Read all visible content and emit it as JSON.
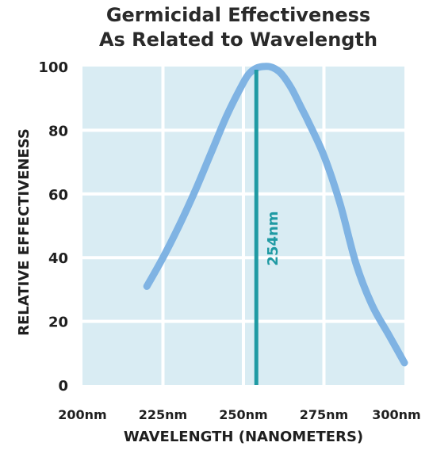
{
  "chart_data": {
    "type": "line",
    "title": [
      "Germicidal Effectiveness",
      "As Related to Wavelength"
    ],
    "xlabel": "WAVELENGTH (NANOMETERS)",
    "ylabel": "RELATIVE EFFECTIVENESS",
    "x_ticks": [
      "200nm",
      "225nm",
      "250nm",
      "275nm",
      "300nm"
    ],
    "y_ticks": [
      "0",
      "20",
      "40",
      "60",
      "80",
      "100"
    ],
    "xlim": [
      200,
      300
    ],
    "ylim": [
      0,
      100
    ],
    "grid": true,
    "series": [
      {
        "x": [
          220,
          225,
          230,
          235,
          240,
          245,
          250,
          252,
          254,
          256,
          258,
          260,
          262,
          265,
          268,
          270,
          275,
          280,
          285,
          290,
          295,
          300
        ],
        "y": [
          31,
          40,
          50,
          61,
          73,
          85,
          95,
          98,
          99.5,
          100,
          100,
          99.2,
          97.5,
          93,
          87,
          83,
          72,
          57,
          38,
          25,
          16,
          7
        ],
        "color": "#7fb3e3"
      }
    ],
    "annotations": [
      {
        "type": "vline",
        "x": 254,
        "label": "254nm",
        "color": "#1f9aa3"
      }
    ],
    "colors": {
      "plot_background": "#d9ecf3",
      "grid": "#ffffff",
      "curve": "#7fb3e3",
      "marker_line": "#1f9aa3"
    }
  }
}
